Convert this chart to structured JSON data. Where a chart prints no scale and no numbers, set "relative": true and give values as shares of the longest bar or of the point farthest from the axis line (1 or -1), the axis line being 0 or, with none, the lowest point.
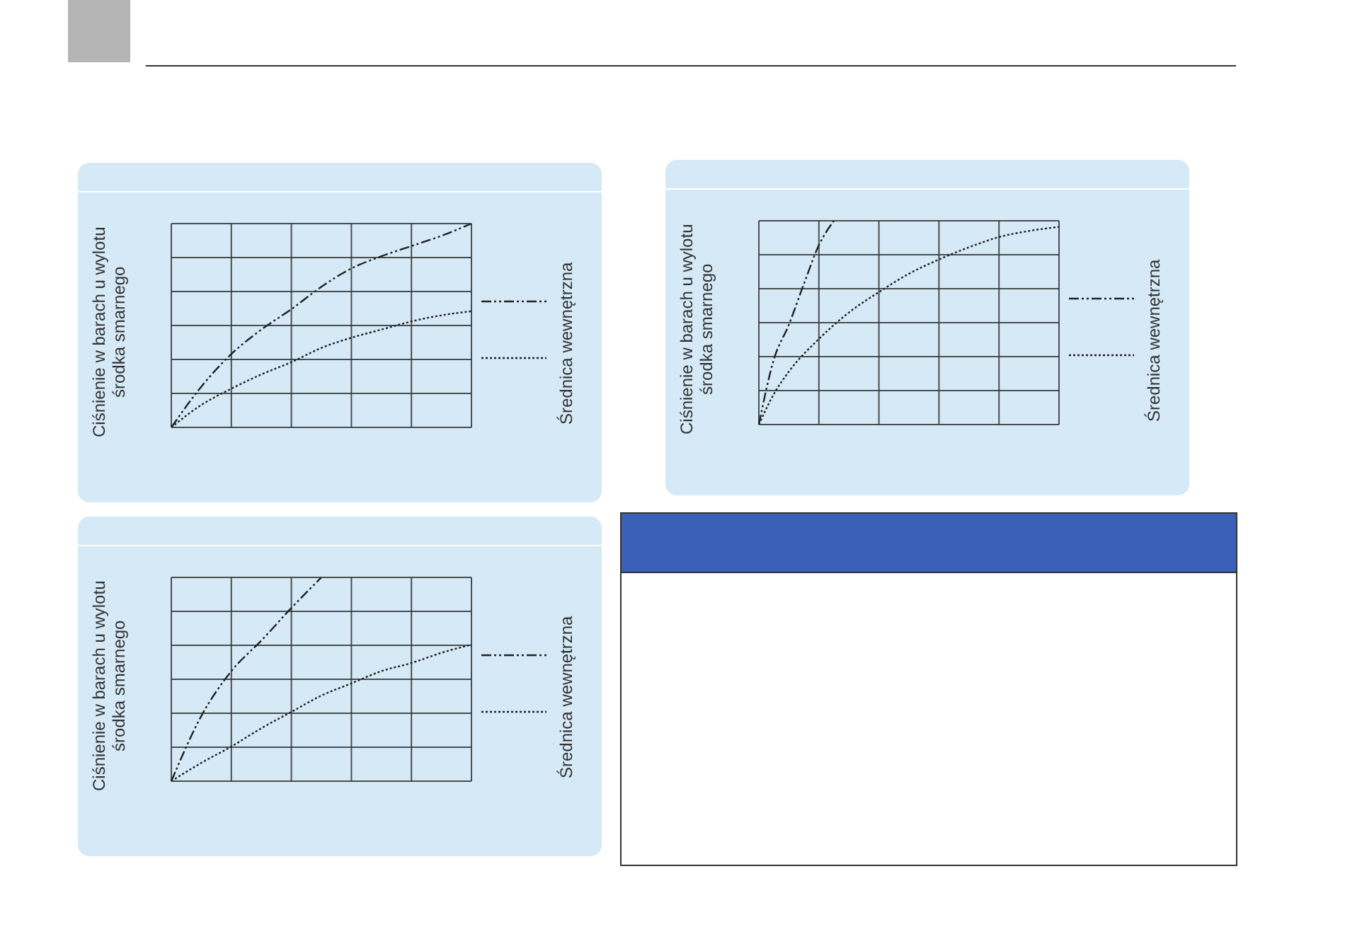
{
  "chart_data": [
    {
      "type": "line",
      "relative": true,
      "ylabel": "Ciśnienie w barach u wylotu środka smarnego",
      "legend_title": "Średnica wewnętrzna",
      "grid": true,
      "tick_labels": false,
      "categories": [
        null,
        null,
        null,
        null,
        null,
        null,
        null,
        null,
        null,
        null,
        null
      ],
      "series": [
        {
          "color": "#222222",
          "line_style": "dashed",
          "values": [
            0,
            0.2,
            0.36,
            0.48,
            0.58,
            0.69,
            0.78,
            0.84,
            0.89,
            0.94,
            1
          ]
        },
        {
          "color": "#222222",
          "line_style": "dotted",
          "values": [
            0,
            0.11,
            0.19,
            0.26,
            0.32,
            0.39,
            0.44,
            0.48,
            0.52,
            0.55,
            0.57
          ]
        }
      ]
    },
    {
      "type": "line",
      "relative": true,
      "ylabel": "Ciśnienie w barach u wylotu środka smarnego",
      "legend_title": "Średnica wewnętrzna",
      "grid": true,
      "tick_labels": false,
      "categories": [
        null,
        null,
        null,
        null,
        null,
        null,
        null,
        null,
        null,
        null,
        null
      ],
      "series": [
        {
          "color": "#222222",
          "line_style": "dashed",
          "values": [
            0,
            0.32,
            0.54,
            0.69,
            0.85,
            1,
            null,
            null,
            null,
            null,
            null
          ]
        },
        {
          "color": "#222222",
          "line_style": "dotted",
          "values": [
            0,
            0.09,
            0.17,
            0.26,
            0.34,
            0.42,
            0.48,
            0.54,
            0.58,
            0.63,
            0.67
          ]
        }
      ]
    },
    {
      "type": "line",
      "relative": true,
      "ylabel": "Ciśnienie w barach u wylotu środka smarnego",
      "legend_title": "Średnica wewnętrzna",
      "grid": true,
      "tick_labels": false,
      "categories": [
        null,
        null,
        null,
        null,
        null,
        null,
        null,
        null,
        null,
        null,
        null,
        null,
        null,
        null,
        null,
        null,
        null,
        null,
        null,
        null,
        null
      ],
      "series": [
        {
          "color": "#222222",
          "line_style": "dashed",
          "values": [
            0,
            0.32,
            0.49,
            0.69,
            0.88,
            1,
            null,
            null,
            null,
            null,
            null,
            null,
            null,
            null,
            null,
            null,
            null,
            null,
            null,
            null,
            null
          ]
        },
        {
          "color": "#222222",
          "line_style": "dotted",
          "values": [
            0,
            0.15,
            0.26,
            null,
            0.42,
            null,
            0.55,
            null,
            0.65,
            null,
            0.74,
            null,
            0.81,
            null,
            0.87,
            null,
            0.92,
            null,
            0.95,
            null,
            0.97
          ]
        }
      ]
    }
  ]
}
